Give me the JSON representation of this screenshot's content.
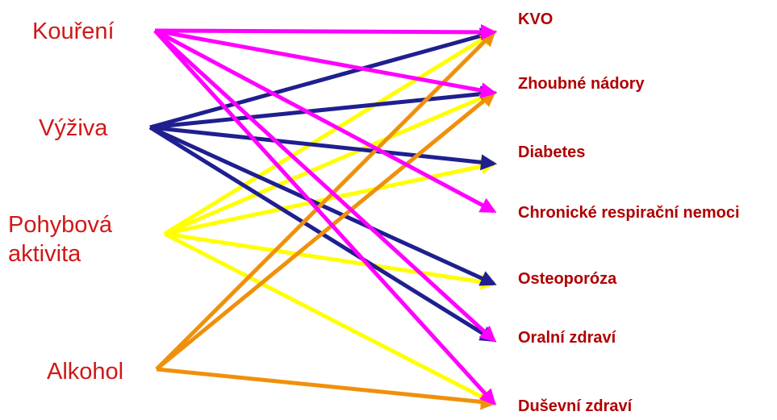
{
  "sources": [
    {
      "label": [
        "Kouření"
      ],
      "color": "#ff00ff"
    },
    {
      "label": [
        "Výživa"
      ],
      "color": "#1f1f8f"
    },
    {
      "label": [
        "Pohybová",
        "aktivita"
      ],
      "color": "#ffff00"
    },
    {
      "label": [
        "Alkohol"
      ],
      "color": "#f0900a"
    }
  ],
  "targets": [
    {
      "label": "KVO"
    },
    {
      "label": "Zhoubné nádory"
    },
    {
      "label": "Diabetes"
    },
    {
      "label": "Chronické respirační nemoci"
    },
    {
      "label": "Osteoporóza"
    },
    {
      "label": "Oralní zdraví"
    },
    {
      "label": "Duševní zdraví"
    }
  ],
  "edges": [
    {
      "from": 2,
      "to": 0
    },
    {
      "from": 2,
      "to": 1
    },
    {
      "from": 2,
      "to": 2
    },
    {
      "from": 2,
      "to": 4
    },
    {
      "from": 2,
      "to": 6
    },
    {
      "from": 1,
      "to": 0
    },
    {
      "from": 1,
      "to": 1
    },
    {
      "from": 1,
      "to": 2
    },
    {
      "from": 1,
      "to": 4
    },
    {
      "from": 1,
      "to": 5
    },
    {
      "from": 3,
      "to": 0
    },
    {
      "from": 3,
      "to": 1
    },
    {
      "from": 3,
      "to": 6
    },
    {
      "from": 0,
      "to": 0
    },
    {
      "from": 0,
      "to": 1
    },
    {
      "from": 0,
      "to": 3
    },
    {
      "from": 0,
      "to": 5
    },
    {
      "from": 0,
      "to": 6
    }
  ]
}
